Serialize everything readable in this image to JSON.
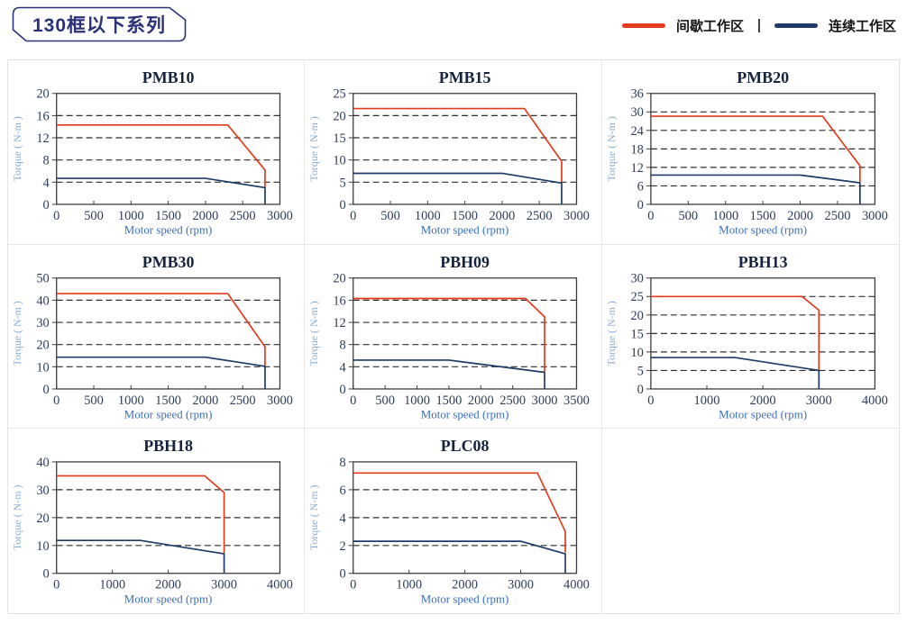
{
  "header": {
    "title": "130框以下系列"
  },
  "legend": {
    "items": [
      {
        "label": "间歇工作区",
        "color": "red"
      },
      {
        "label": "连续工作区",
        "color": "navy"
      }
    ]
  },
  "colors": {
    "red": "#e23b1d",
    "navy": "#1f3a68"
  },
  "chart_data": [
    {
      "type": "line",
      "title": "PMB10",
      "xlabel": "Motor speed (rpm)",
      "ylabel": "Torque ( N-m )",
      "xlim": [
        0,
        3000
      ],
      "ylim": [
        0,
        20
      ],
      "xticks": [
        0,
        500,
        1000,
        1500,
        2000,
        2500,
        3000
      ],
      "yticks": [
        0,
        4,
        8,
        12,
        16,
        20
      ],
      "grid": "dashed-horizontal",
      "legend_position": "none",
      "series": [
        {
          "name": "间歇工作区",
          "color": "red",
          "points": [
            [
              0,
              14.3
            ],
            [
              2300,
              14.3
            ],
            [
              2800,
              6.2
            ],
            [
              2800,
              3.1
            ]
          ]
        },
        {
          "name": "连续工作区",
          "color": "navy",
          "points": [
            [
              0,
              4.7
            ],
            [
              2000,
              4.7
            ],
            [
              2800,
              3.0
            ],
            [
              2800,
              0
            ]
          ]
        }
      ]
    },
    {
      "type": "line",
      "title": "PMB15",
      "xlabel": "Motor speed (rpm)",
      "ylabel": "Torque ( N-m )",
      "xlim": [
        0,
        3000
      ],
      "ylim": [
        0,
        25
      ],
      "xticks": [
        0,
        500,
        1000,
        1500,
        2000,
        2500,
        3000
      ],
      "yticks": [
        0,
        5,
        10,
        15,
        20,
        25
      ],
      "grid": "dashed-horizontal",
      "legend_position": "none",
      "series": [
        {
          "name": "间歇工作区",
          "color": "red",
          "points": [
            [
              0,
              21.6
            ],
            [
              2300,
              21.6
            ],
            [
              2800,
              9.7
            ],
            [
              2800,
              4.9
            ]
          ]
        },
        {
          "name": "连续工作区",
          "color": "navy",
          "points": [
            [
              0,
              7.0
            ],
            [
              2000,
              7.0
            ],
            [
              2800,
              4.8
            ],
            [
              2800,
              0
            ]
          ]
        }
      ]
    },
    {
      "type": "line",
      "title": "PMB20",
      "xlabel": "Motor speed (rpm)",
      "ylabel": "Torque ( N-m )",
      "xlim": [
        0,
        3000
      ],
      "ylim": [
        0,
        36
      ],
      "xticks": [
        0,
        500,
        1000,
        1500,
        2000,
        2500,
        3000
      ],
      "yticks": [
        0,
        6,
        12,
        18,
        24,
        30,
        36
      ],
      "grid": "dashed-horizontal",
      "legend_position": "none",
      "series": [
        {
          "name": "间歇工作区",
          "color": "red",
          "points": [
            [
              0,
              28.6
            ],
            [
              2300,
              28.6
            ],
            [
              2800,
              12.5
            ],
            [
              2800,
              7.1
            ]
          ]
        },
        {
          "name": "连续工作区",
          "color": "navy",
          "points": [
            [
              0,
              9.5
            ],
            [
              2000,
              9.5
            ],
            [
              2800,
              7.0
            ],
            [
              2800,
              0
            ]
          ]
        }
      ]
    },
    {
      "type": "line",
      "title": "PMB30",
      "xlabel": "Motor speed (rpm)",
      "ylabel": "Torque ( N-m )",
      "xlim": [
        0,
        3000
      ],
      "ylim": [
        0,
        50
      ],
      "xticks": [
        0,
        500,
        1000,
        1500,
        2000,
        2500,
        3000
      ],
      "yticks": [
        0,
        10,
        20,
        30,
        40,
        50
      ],
      "grid": "dashed-horizontal",
      "legend_position": "none",
      "series": [
        {
          "name": "间歇工作区",
          "color": "red",
          "points": [
            [
              0,
              43
            ],
            [
              2300,
              43
            ],
            [
              2800,
              19
            ],
            [
              2800,
              10.4
            ]
          ]
        },
        {
          "name": "连续工作区",
          "color": "navy",
          "points": [
            [
              0,
              14.3
            ],
            [
              2000,
              14.3
            ],
            [
              2800,
              10.2
            ],
            [
              2800,
              0
            ]
          ]
        }
      ]
    },
    {
      "type": "line",
      "title": "PBH09",
      "xlabel": "Motor speed (rpm)",
      "ylabel": "Torque ( N-m )",
      "xlim": [
        0,
        3500
      ],
      "ylim": [
        0,
        20
      ],
      "xticks": [
        0,
        500,
        1000,
        1500,
        2000,
        2500,
        3000,
        3500
      ],
      "yticks": [
        0,
        4,
        8,
        12,
        16,
        20
      ],
      "grid": "dashed-horizontal",
      "legend_position": "none",
      "series": [
        {
          "name": "间歇工作区",
          "color": "red",
          "points": [
            [
              0,
              16.3
            ],
            [
              2700,
              16.3
            ],
            [
              3000,
              13.0
            ],
            [
              3000,
              3.1
            ]
          ]
        },
        {
          "name": "连续工作区",
          "color": "navy",
          "points": [
            [
              0,
              5.2
            ],
            [
              1500,
              5.2
            ],
            [
              3000,
              3.0
            ],
            [
              3000,
              0
            ]
          ]
        }
      ]
    },
    {
      "type": "line",
      "title": "PBH13",
      "xlabel": "Motor speed (rpm)",
      "ylabel": "Torque ( N-m )",
      "xlim": [
        0,
        4000
      ],
      "ylim": [
        0,
        30
      ],
      "xticks": [
        0,
        1000,
        2000,
        3000,
        4000
      ],
      "yticks": [
        0,
        5,
        10,
        15,
        20,
        25,
        30
      ],
      "grid": "dashed-horizontal",
      "legend_position": "none",
      "series": [
        {
          "name": "间歇工作区",
          "color": "red",
          "points": [
            [
              0,
              25
            ],
            [
              2700,
              25
            ],
            [
              3000,
              21.3
            ],
            [
              3000,
              5.1
            ]
          ]
        },
        {
          "name": "连续工作区",
          "color": "navy",
          "points": [
            [
              0,
              8.5
            ],
            [
              1500,
              8.5
            ],
            [
              3000,
              5.0
            ],
            [
              3000,
              0
            ]
          ]
        }
      ]
    },
    {
      "type": "line",
      "title": "PBH18",
      "xlabel": "Motor speed (rpm)",
      "ylabel": "Torque ( N-m )",
      "xlim": [
        0,
        4000
      ],
      "ylim": [
        0,
        40
      ],
      "xticks": [
        0,
        1000,
        2000,
        3000,
        4000
      ],
      "yticks": [
        0,
        10,
        20,
        30,
        40
      ],
      "grid": "dashed-horizontal",
      "legend_position": "none",
      "series": [
        {
          "name": "间歇工作区",
          "color": "red",
          "points": [
            [
              0,
              35
            ],
            [
              2650,
              35
            ],
            [
              3000,
              29
            ],
            [
              3000,
              7.1
            ]
          ]
        },
        {
          "name": "连续工作区",
          "color": "navy",
          "points": [
            [
              0,
              11.8
            ],
            [
              1500,
              11.8
            ],
            [
              3000,
              7.0
            ],
            [
              3000,
              0
            ]
          ]
        }
      ]
    },
    {
      "type": "line",
      "title": "PLC08",
      "xlabel": "Motor speed (rpm)",
      "ylabel": "Torque ( N-m )",
      "xlim": [
        0,
        4000
      ],
      "ylim": [
        0,
        8
      ],
      "xticks": [
        0,
        1000,
        2000,
        3000,
        4000
      ],
      "yticks": [
        0,
        2,
        4,
        6,
        8
      ],
      "grid": "dashed-horizontal",
      "legend_position": "none",
      "series": [
        {
          "name": "间歇工作区",
          "color": "red",
          "points": [
            [
              0,
              7.2
            ],
            [
              3300,
              7.2
            ],
            [
              3800,
              3.0
            ],
            [
              3800,
              1.5
            ]
          ]
        },
        {
          "name": "连续工作区",
          "color": "navy",
          "points": [
            [
              0,
              2.3
            ],
            [
              3000,
              2.3
            ],
            [
              3800,
              1.4
            ],
            [
              3800,
              0
            ]
          ]
        }
      ]
    }
  ]
}
